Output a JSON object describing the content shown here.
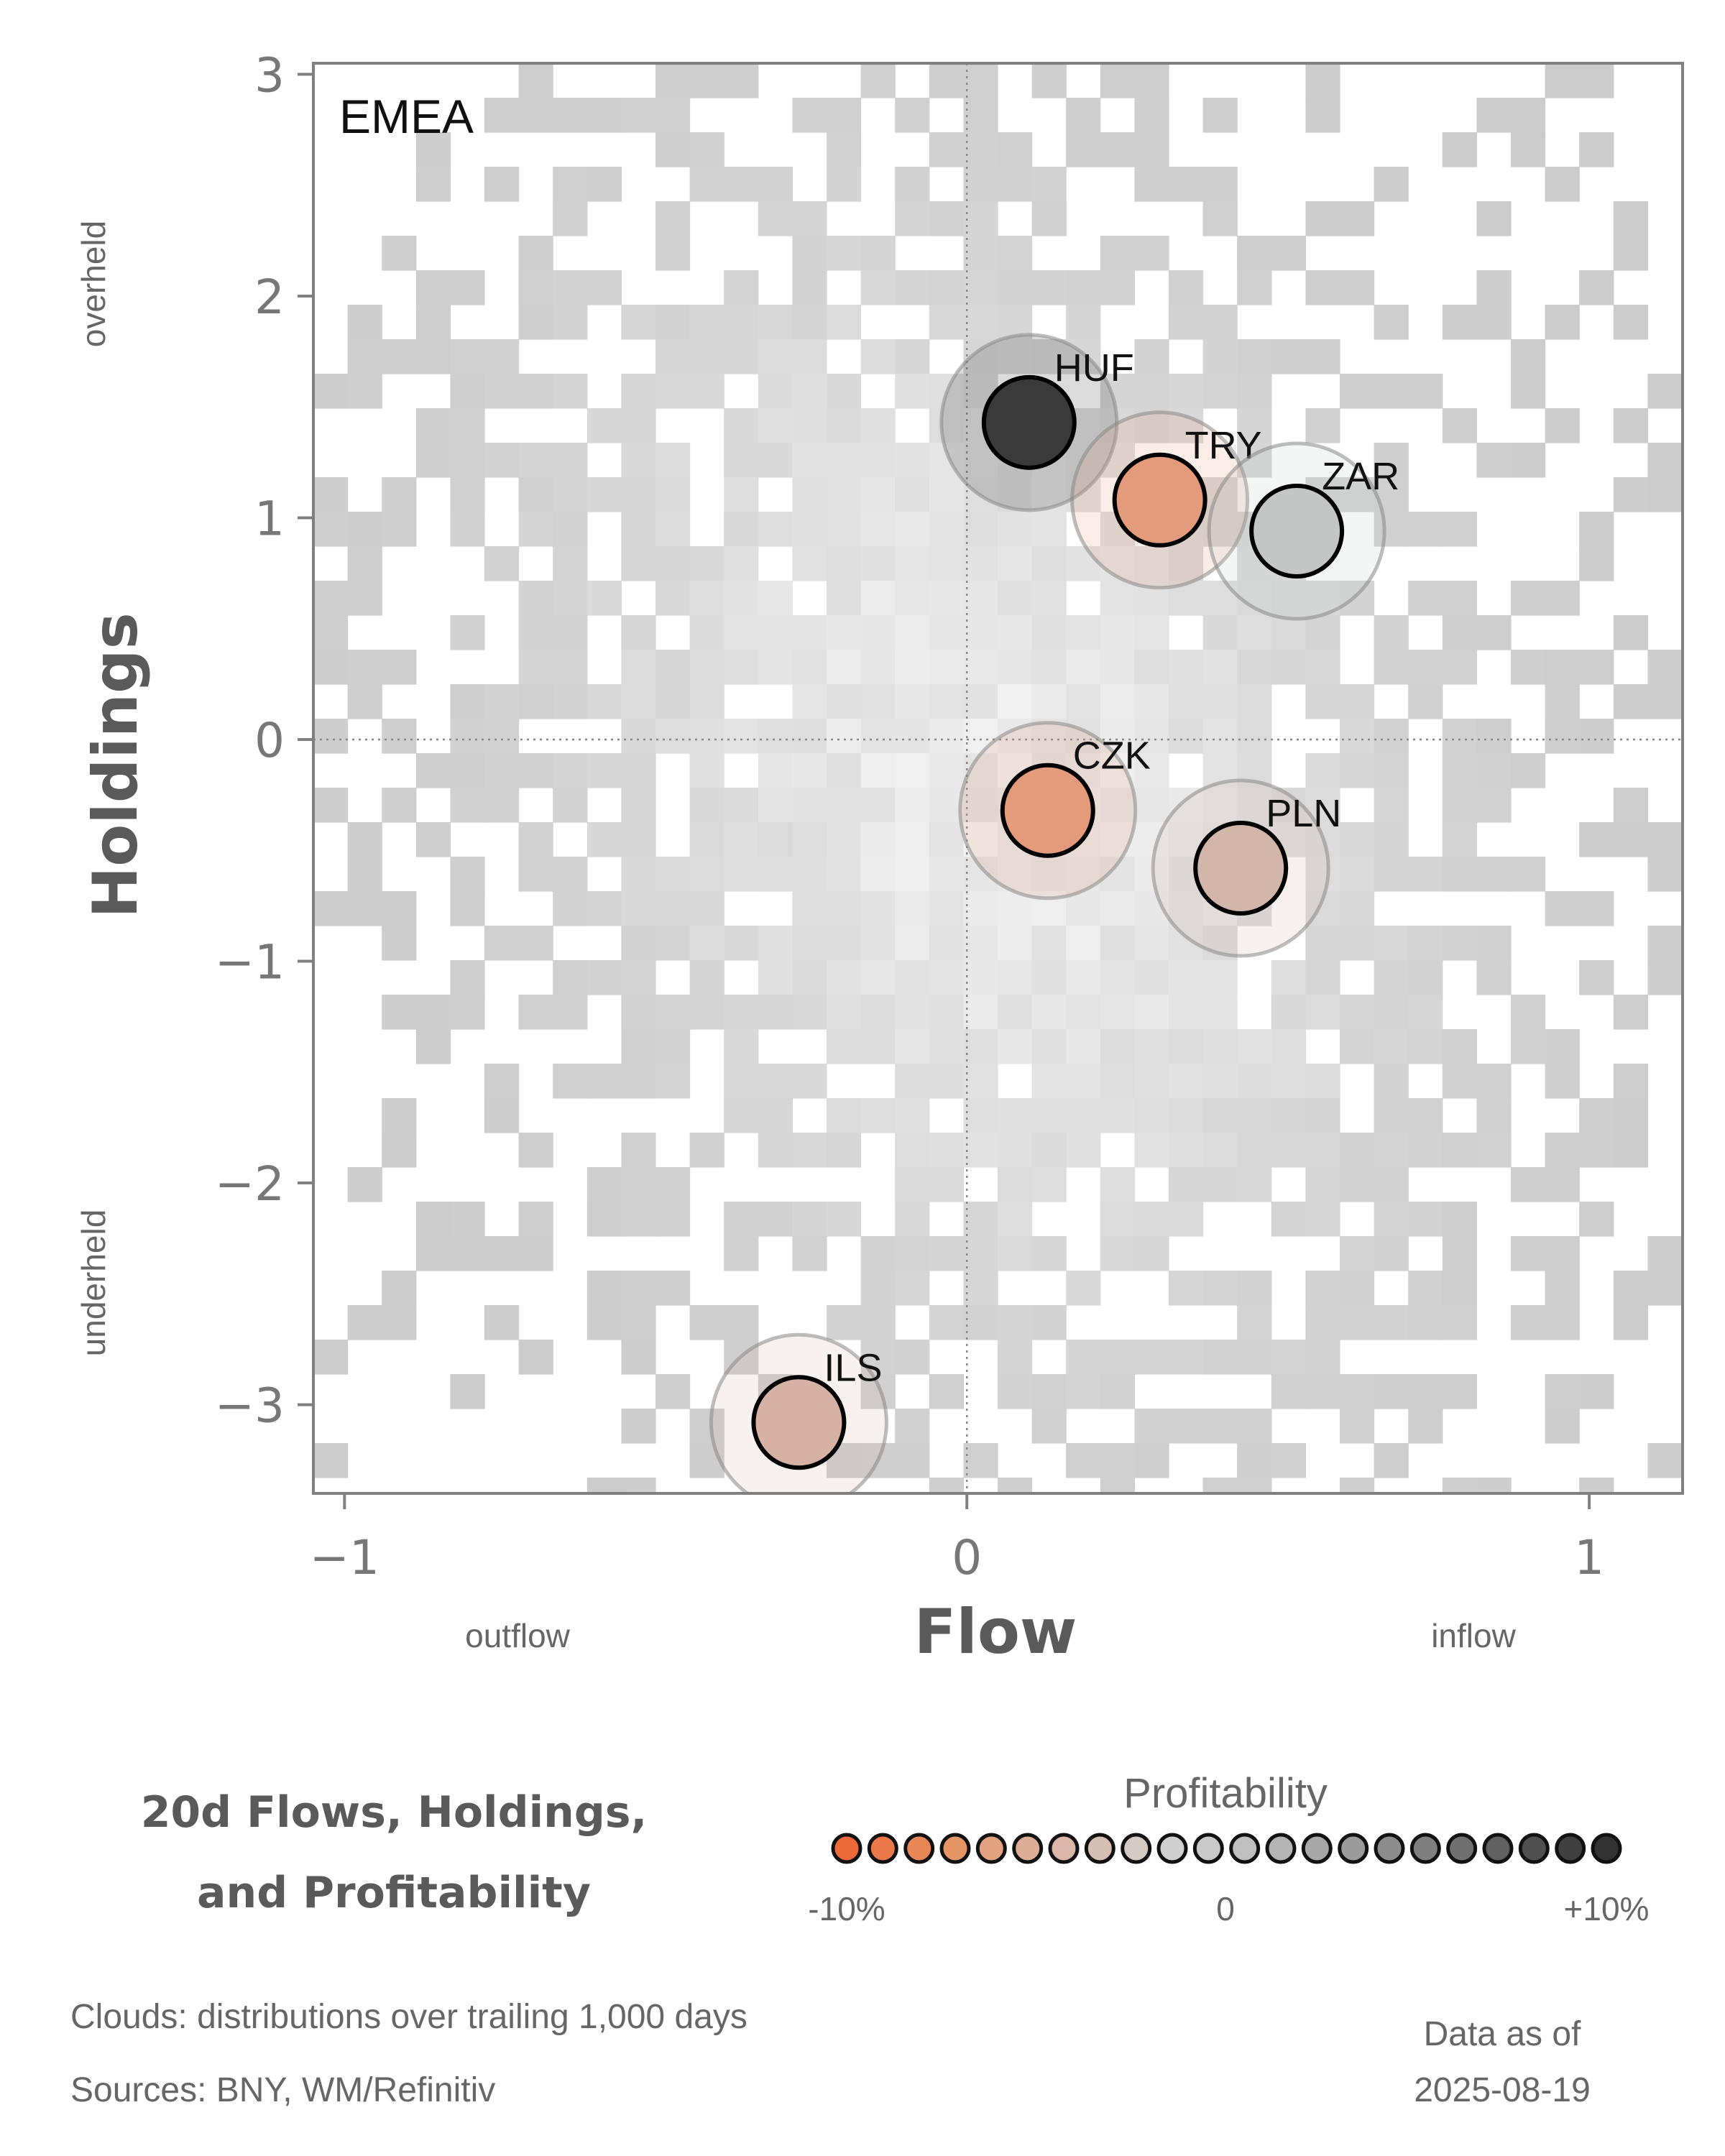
{
  "chart_data": {
    "type": "scatter",
    "panel_label": "EMEA",
    "xlabel": "Flow",
    "ylabel": "Holdings",
    "x_side_labels": {
      "left": "outflow",
      "right": "inflow"
    },
    "y_side_labels": {
      "top": "overheld",
      "bottom": "underheld"
    },
    "xlim": [
      -1.05,
      1.15
    ],
    "ylim": [
      -3.4,
      3.05
    ],
    "x_ticks": [
      -1,
      0,
      1
    ],
    "y_ticks": [
      3,
      2,
      1,
      0,
      -1,
      -2,
      -3
    ],
    "x_tick_labels": [
      "−1",
      "0",
      "1"
    ],
    "y_tick_labels": [
      "3",
      "2",
      "1",
      "0",
      "−1",
      "−2",
      "−3"
    ],
    "reference_lines": {
      "x": 0,
      "y": 0,
      "style": "dotted"
    },
    "points": [
      {
        "label": "HUF",
        "x": 0.1,
        "y": 1.43,
        "color": "#3a3a3a"
      },
      {
        "label": "TRY",
        "x": 0.31,
        "y": 1.08,
        "color": "#e39b7b"
      },
      {
        "label": "ZAR",
        "x": 0.53,
        "y": 0.94,
        "color": "#c4c6c5"
      },
      {
        "label": "CZK",
        "x": 0.13,
        "y": -0.32,
        "color": "#e39b7b"
      },
      {
        "label": "PLN",
        "x": 0.44,
        "y": -0.58,
        "color": "#d3b6aa"
      },
      {
        "label": "ILS",
        "x": -0.27,
        "y": -3.08,
        "color": "#d5b2a4"
      }
    ],
    "background": "gray cloud distribution"
  },
  "legend": {
    "title_line1": "20d Flows, Holdings,",
    "title_line2": "and Profitability",
    "header": "Profitability",
    "min_label": "-10%",
    "mid_label": "0",
    "max_label": "+10%",
    "colors": [
      "#ef6a3a",
      "#eb7848",
      "#e88656",
      "#e59464",
      "#e2a17f",
      "#ddad98",
      "#dab6a8",
      "#d6c0b6",
      "#d3cac4",
      "#cfcfcf",
      "#c8c9c8",
      "#bebfbe",
      "#b3b4b3",
      "#a7a8a7",
      "#9a9b9a",
      "#8c8d8c",
      "#7e7f7e",
      "#6f706f",
      "#5f605f",
      "#4f504f",
      "#3f403f",
      "#333333"
    ]
  },
  "footer": {
    "clouds_note": "Clouds:  distributions over trailing 1,000 days",
    "sources": "Sources:  BNY, WM/Refinitiv",
    "asof_label": "Data as of",
    "asof_date": "2025-08-19"
  }
}
